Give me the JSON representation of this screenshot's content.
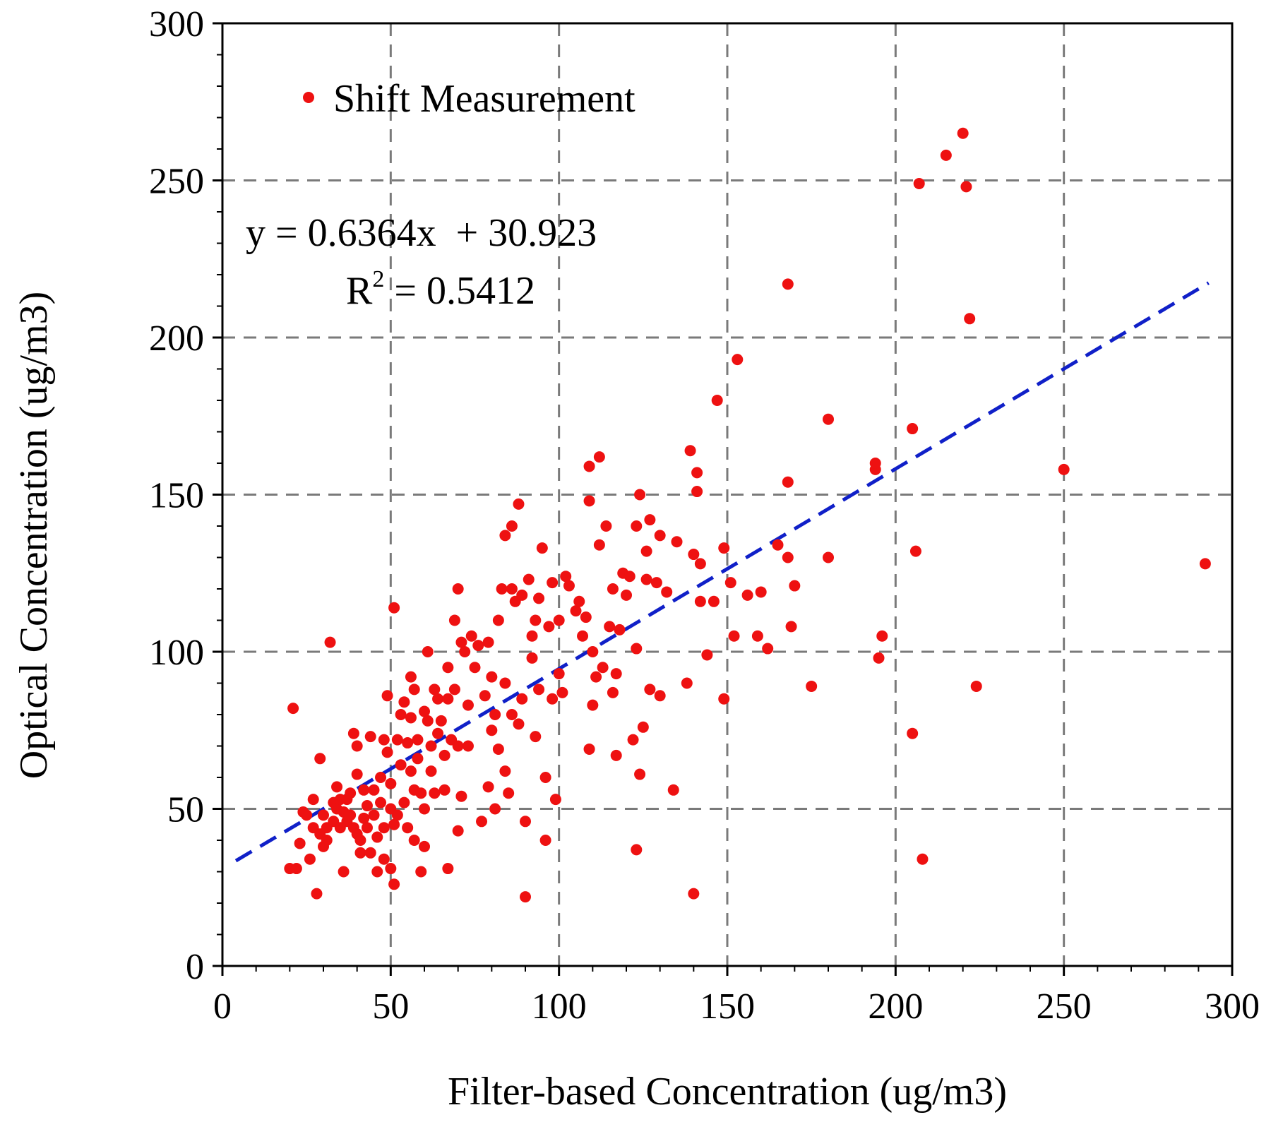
{
  "chart_data": {
    "type": "scatter",
    "xlabel": "Filter-based Concentration (ug/m3)",
    "ylabel": "Optical Concentration (ug/m3)",
    "xlim": [
      0,
      300
    ],
    "ylim": [
      0,
      300
    ],
    "x_ticks": [
      0,
      50,
      100,
      150,
      200,
      250,
      300
    ],
    "y_ticks": [
      0,
      50,
      100,
      150,
      200,
      250,
      300
    ],
    "x_tick_labels": [
      "0",
      "50",
      "100",
      "150",
      "200",
      "250",
      "300"
    ],
    "y_tick_labels": [
      "0",
      "50",
      "100",
      "150",
      "200",
      "250",
      "300"
    ],
    "grid": true,
    "legend": {
      "position": "top-left",
      "entries": [
        "Shift Measurement"
      ]
    },
    "colors": {
      "points": "#ee1111",
      "trendline": "#1020c8",
      "grid": "#7a7a7a"
    },
    "annotations": {
      "equation": "y = 0.6364x  + 30.923",
      "r2_prefix": "R",
      "r2_exp": "2",
      "r2_rest": " = 0.5412"
    },
    "trendline": {
      "slope": 0.6364,
      "intercept": 30.923,
      "x_range": [
        4,
        293
      ]
    },
    "series": [
      {
        "name": "Shift Measurement",
        "points": [
          [
            20,
            31
          ],
          [
            21,
            82
          ],
          [
            22,
            31
          ],
          [
            23,
            39
          ],
          [
            24,
            49
          ],
          [
            25,
            48
          ],
          [
            26,
            34
          ],
          [
            27,
            44
          ],
          [
            27,
            53
          ],
          [
            28,
            23
          ],
          [
            29,
            42
          ],
          [
            29,
            66
          ],
          [
            30,
            38
          ],
          [
            30,
            48
          ],
          [
            31,
            44
          ],
          [
            31,
            40
          ],
          [
            32,
            103
          ],
          [
            33,
            52
          ],
          [
            33,
            46
          ],
          [
            34,
            57
          ],
          [
            34,
            50
          ],
          [
            35,
            53
          ],
          [
            35,
            44
          ],
          [
            36,
            30
          ],
          [
            36,
            49
          ],
          [
            37,
            53
          ],
          [
            37,
            46
          ],
          [
            38,
            55
          ],
          [
            38,
            48
          ],
          [
            39,
            44
          ],
          [
            39,
            74
          ],
          [
            40,
            61
          ],
          [
            40,
            42
          ],
          [
            40,
            70
          ],
          [
            41,
            40
          ],
          [
            41,
            36
          ],
          [
            42,
            56
          ],
          [
            42,
            47
          ],
          [
            43,
            51
          ],
          [
            43,
            44
          ],
          [
            44,
            73
          ],
          [
            44,
            36
          ],
          [
            45,
            56
          ],
          [
            45,
            48
          ],
          [
            46,
            30
          ],
          [
            46,
            41
          ],
          [
            47,
            60
          ],
          [
            47,
            52
          ],
          [
            48,
            72
          ],
          [
            48,
            44
          ],
          [
            48,
            34
          ],
          [
            49,
            86
          ],
          [
            49,
            68
          ],
          [
            50,
            58
          ],
          [
            50,
            50
          ],
          [
            50,
            31
          ],
          [
            51,
            114
          ],
          [
            51,
            45
          ],
          [
            51,
            26
          ],
          [
            52,
            72
          ],
          [
            52,
            48
          ],
          [
            53,
            64
          ],
          [
            53,
            80
          ],
          [
            54,
            84
          ],
          [
            54,
            52
          ],
          [
            55,
            71
          ],
          [
            55,
            44
          ],
          [
            56,
            79
          ],
          [
            56,
            92
          ],
          [
            56,
            62
          ],
          [
            57,
            56
          ],
          [
            57,
            40
          ],
          [
            57,
            88
          ],
          [
            58,
            72
          ],
          [
            58,
            66
          ],
          [
            59,
            55
          ],
          [
            59,
            30
          ],
          [
            60,
            81
          ],
          [
            60,
            50
          ],
          [
            60,
            38
          ],
          [
            61,
            100
          ],
          [
            61,
            78
          ],
          [
            62,
            70
          ],
          [
            62,
            62
          ],
          [
            63,
            88
          ],
          [
            63,
            55
          ],
          [
            64,
            74
          ],
          [
            64,
            85
          ],
          [
            65,
            78
          ],
          [
            66,
            67
          ],
          [
            66,
            56
          ],
          [
            67,
            95
          ],
          [
            67,
            85
          ],
          [
            67,
            31
          ],
          [
            68,
            72
          ],
          [
            69,
            110
          ],
          [
            69,
            88
          ],
          [
            70,
            120
          ],
          [
            70,
            70
          ],
          [
            70,
            43
          ],
          [
            71,
            103
          ],
          [
            71,
            54
          ],
          [
            72,
            100
          ],
          [
            73,
            70
          ],
          [
            73,
            83
          ],
          [
            74,
            105
          ],
          [
            75,
            95
          ],
          [
            76,
            102
          ],
          [
            77,
            46
          ],
          [
            78,
            86
          ],
          [
            79,
            103
          ],
          [
            79,
            57
          ],
          [
            80,
            92
          ],
          [
            80,
            75
          ],
          [
            81,
            80
          ],
          [
            81,
            50
          ],
          [
            82,
            110
          ],
          [
            82,
            69
          ],
          [
            83,
            120
          ],
          [
            84,
            137
          ],
          [
            84,
            62
          ],
          [
            84,
            90
          ],
          [
            85,
            55
          ],
          [
            86,
            140
          ],
          [
            86,
            120
          ],
          [
            86,
            80
          ],
          [
            87,
            116
          ],
          [
            88,
            147
          ],
          [
            88,
            77
          ],
          [
            89,
            118
          ],
          [
            89,
            85
          ],
          [
            90,
            46
          ],
          [
            90,
            22
          ],
          [
            91,
            123
          ],
          [
            92,
            105
          ],
          [
            92,
            98
          ],
          [
            93,
            110
          ],
          [
            93,
            73
          ],
          [
            94,
            117
          ],
          [
            94,
            88
          ],
          [
            95,
            133
          ],
          [
            96,
            60
          ],
          [
            96,
            40
          ],
          [
            97,
            108
          ],
          [
            98,
            122
          ],
          [
            98,
            85
          ],
          [
            99,
            53
          ],
          [
            100,
            110
          ],
          [
            100,
            93
          ],
          [
            101,
            87
          ],
          [
            102,
            124
          ],
          [
            103,
            121
          ],
          [
            105,
            113
          ],
          [
            106,
            116
          ],
          [
            107,
            105
          ],
          [
            108,
            111
          ],
          [
            109,
            159
          ],
          [
            109,
            148
          ],
          [
            109,
            69
          ],
          [
            110,
            100
          ],
          [
            110,
            83
          ],
          [
            111,
            92
          ],
          [
            112,
            162
          ],
          [
            112,
            134
          ],
          [
            113,
            95
          ],
          [
            114,
            140
          ],
          [
            115,
            108
          ],
          [
            116,
            120
          ],
          [
            116,
            87
          ],
          [
            117,
            67
          ],
          [
            117,
            93
          ],
          [
            118,
            107
          ],
          [
            119,
            125
          ],
          [
            120,
            118
          ],
          [
            121,
            124
          ],
          [
            122,
            72
          ],
          [
            123,
            140
          ],
          [
            123,
            101
          ],
          [
            123,
            37
          ],
          [
            124,
            150
          ],
          [
            124,
            61
          ],
          [
            125,
            76
          ],
          [
            126,
            132
          ],
          [
            126,
            123
          ],
          [
            127,
            142
          ],
          [
            127,
            88
          ],
          [
            129,
            122
          ],
          [
            130,
            86
          ],
          [
            130,
            137
          ],
          [
            132,
            119
          ],
          [
            134,
            56
          ],
          [
            135,
            135
          ],
          [
            138,
            90
          ],
          [
            139,
            164
          ],
          [
            140,
            131
          ],
          [
            140,
            23
          ],
          [
            141,
            157
          ],
          [
            141,
            151
          ],
          [
            142,
            116
          ],
          [
            142,
            128
          ],
          [
            144,
            99
          ],
          [
            146,
            116
          ],
          [
            147,
            180
          ],
          [
            149,
            133
          ],
          [
            149,
            85
          ],
          [
            151,
            122
          ],
          [
            152,
            105
          ],
          [
            153,
            193
          ],
          [
            156,
            118
          ],
          [
            159,
            105
          ],
          [
            160,
            119
          ],
          [
            162,
            101
          ],
          [
            165,
            134
          ],
          [
            168,
            154
          ],
          [
            168,
            130
          ],
          [
            168,
            217
          ],
          [
            169,
            108
          ],
          [
            170,
            121
          ],
          [
            175,
            89
          ],
          [
            180,
            174
          ],
          [
            180,
            130
          ],
          [
            194,
            158
          ],
          [
            194,
            160
          ],
          [
            195,
            98
          ],
          [
            196,
            105
          ],
          [
            205,
            171
          ],
          [
            205,
            74
          ],
          [
            206,
            132
          ],
          [
            207,
            249
          ],
          [
            208,
            34
          ],
          [
            215,
            258
          ],
          [
            220,
            265
          ],
          [
            221,
            248
          ],
          [
            222,
            206
          ],
          [
            224,
            89
          ],
          [
            250,
            158
          ],
          [
            292,
            128
          ]
        ]
      }
    ]
  }
}
